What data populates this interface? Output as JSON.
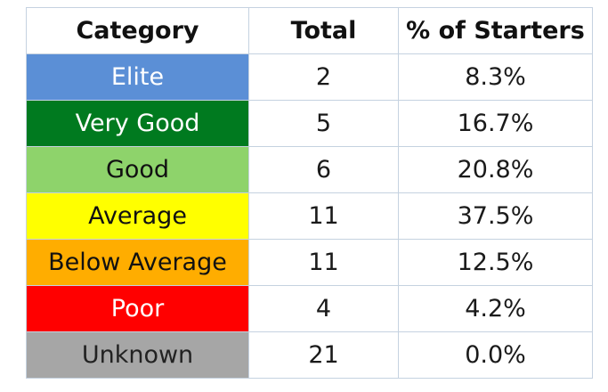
{
  "chart_data": {
    "type": "table",
    "columns": [
      "Category",
      "Total",
      "% of Starters"
    ],
    "rows": [
      {
        "category": "Elite",
        "total": "2",
        "pct": "8.3%",
        "bg": "#5b8fd6",
        "fg": "#ffffff"
      },
      {
        "category": "Very Good",
        "total": "5",
        "pct": "16.7%",
        "bg": "#007a1f",
        "fg": "#ffffff"
      },
      {
        "category": "Good",
        "total": "6",
        "pct": "20.8%",
        "bg": "#8ed36b",
        "fg": "#111111"
      },
      {
        "category": "Average",
        "total": "11",
        "pct": "37.5%",
        "bg": "#ffff00",
        "fg": "#111111"
      },
      {
        "category": "Below Average",
        "total": "11",
        "pct": "12.5%",
        "bg": "#ffad00",
        "fg": "#111111"
      },
      {
        "category": "Poor",
        "total": "4",
        "pct": "4.2%",
        "bg": "#ff0000",
        "fg": "#ffffff"
      },
      {
        "category": "Unknown",
        "total": "21",
        "pct": "0.0%",
        "bg": "#a6a6a6",
        "fg": "#222222"
      }
    ]
  }
}
